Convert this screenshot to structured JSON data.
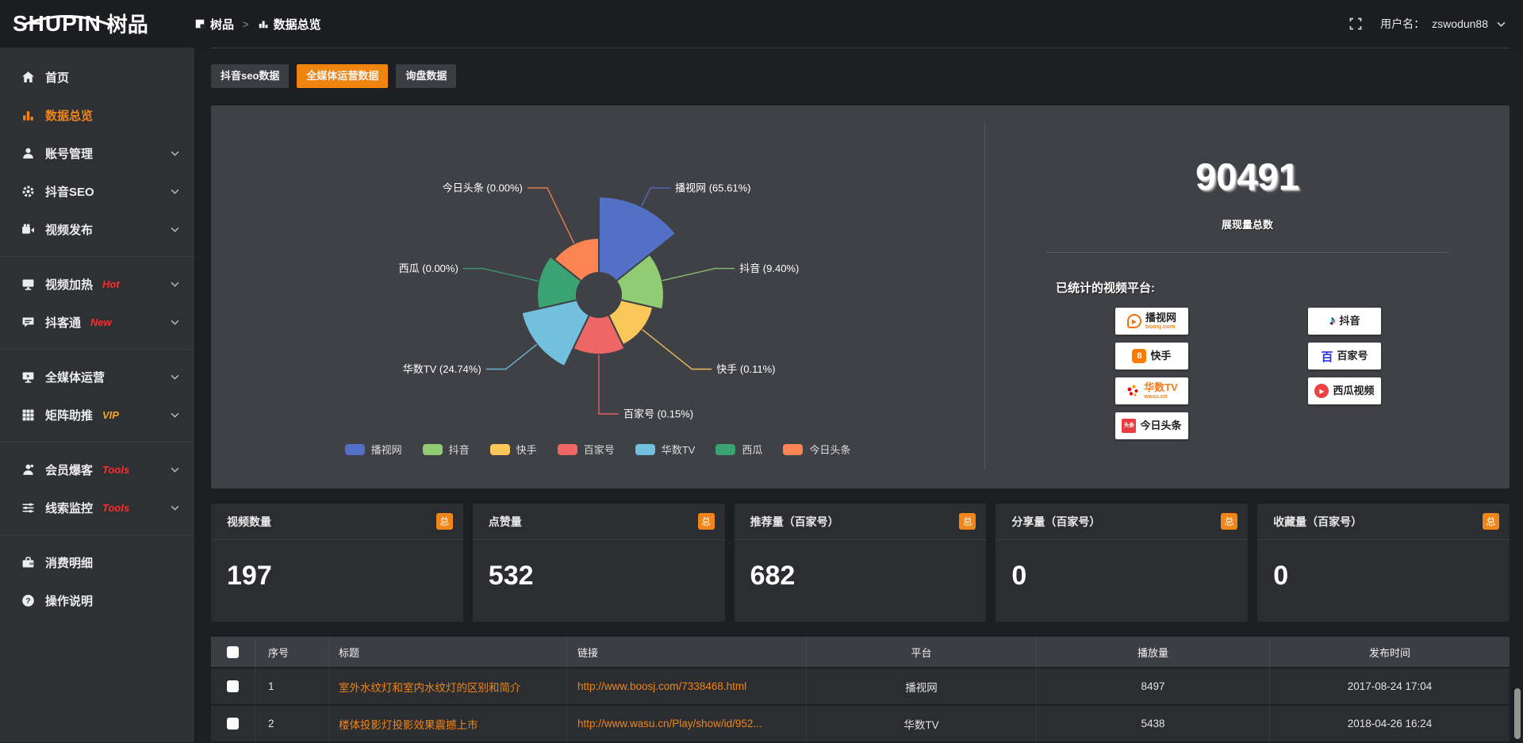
{
  "colors": {
    "accent": "#ee830d",
    "panel_bg": "#404146",
    "hot_badge": "#ff2b2b",
    "vip_badge": "#f5a623",
    "link_orange": "#ee8516"
  },
  "header": {
    "logo_en": "SHUPIN",
    "logo_cn": "树品",
    "breadcrumb": {
      "root": "树品",
      "separator": ">",
      "current": "数据总览"
    },
    "username_label": "用户名：",
    "username": "zswodun88"
  },
  "sidebar": {
    "items": [
      {
        "name": "home",
        "icon": "home",
        "label": "首页"
      },
      {
        "name": "data-overview",
        "icon": "chart",
        "label": "数据总览",
        "active": true
      },
      {
        "name": "account-management",
        "icon": "user",
        "label": "账号管理",
        "chevron": true
      },
      {
        "name": "douyin-seo",
        "icon": "gear",
        "label": "抖音SEO",
        "chevron": true
      },
      {
        "name": "video-publish",
        "icon": "video",
        "label": "视频发布",
        "chevron": true
      },
      {
        "divider": true
      },
      {
        "name": "video-heating",
        "icon": "screen",
        "label": "视频加热",
        "badge": "Hot",
        "badge_color": "#ff2b2b",
        "chevron": true
      },
      {
        "name": "douketong",
        "icon": "chat",
        "label": "抖客通",
        "badge": "New",
        "badge_color": "#ff2b2b",
        "chevron": true
      },
      {
        "divider": true
      },
      {
        "name": "omnimedia-operation",
        "icon": "monitor",
        "label": "全媒体运营",
        "chevron": true
      },
      {
        "name": "matrix-boost",
        "icon": "grid",
        "label": "矩阵助推",
        "badge": "VIP",
        "badge_color": "#f5a623",
        "chevron": true
      },
      {
        "divider": true
      },
      {
        "name": "member-baoke",
        "icon": "member",
        "label": "会员爆客",
        "badge": "Tools",
        "badge_color": "#ff2b2b",
        "chevron": true
      },
      {
        "name": "clue-monitor",
        "icon": "sliders",
        "label": "线索监控",
        "badge": "Tools",
        "badge_color": "#ff2b2b",
        "chevron": true
      },
      {
        "divider": true
      },
      {
        "name": "consumption-detail",
        "icon": "wallet",
        "label": "消费明细"
      },
      {
        "name": "operation-guide",
        "icon": "question",
        "label": "操作说明"
      }
    ]
  },
  "tabs": [
    {
      "name": "douyin-seo-data",
      "label": "抖音seo数据",
      "active": false
    },
    {
      "name": "omnimedia-operation-data",
      "label": "全媒体运营数据",
      "active": true
    },
    {
      "name": "inquiry-data",
      "label": "询盘数据",
      "active": false
    }
  ],
  "chart_data": {
    "type": "pie",
    "subtype": "nightingale-rose",
    "title": "",
    "label_format": "{name} ({pct}%)",
    "legend_position": "bottom",
    "inner_radius": 28,
    "series": [
      {
        "name": "播视网",
        "pct": 65.61,
        "color": "#5470c6",
        "radius": 124
      },
      {
        "name": "抖音",
        "pct": 9.4,
        "color": "#91cc75",
        "radius": 82
      },
      {
        "name": "快手",
        "pct": 0.11,
        "color": "#fac858",
        "radius": 70
      },
      {
        "name": "百家号",
        "pct": 0.15,
        "color": "#ee6666",
        "radius": 75
      },
      {
        "name": "华数TV",
        "pct": 24.74,
        "color": "#73c0de",
        "radius": 100
      },
      {
        "name": "西瓜",
        "pct": 0.0,
        "color": "#3ba272",
        "radius": 78
      },
      {
        "name": "今日头条",
        "pct": 0.0,
        "color": "#fc8452",
        "radius": 72
      }
    ]
  },
  "summary": {
    "total_value": "90491",
    "total_label": "展现量总数",
    "platforms_label": "已统计的视频平台:",
    "platform_columns": [
      [
        {
          "name": "boosj",
          "icon": "boosj",
          "label": "播视网",
          "sub": "boosj.com"
        },
        {
          "name": "kuaishou",
          "icon": "kuaishou",
          "label": "快手"
        },
        {
          "name": "wasu",
          "icon": "wasu",
          "label": "华数TV",
          "sub": "wasu.cn",
          "label_class": "orange"
        },
        {
          "name": "toutiao",
          "icon": "toutiao",
          "label": "今日头条",
          "icon_text": "头条"
        }
      ],
      [
        {
          "name": "douyin",
          "icon": "douyin",
          "label": "抖音"
        },
        {
          "name": "baijiahao",
          "icon": "baijia",
          "label": "百家号",
          "icon_text": "百"
        },
        {
          "name": "xigua",
          "icon": "xigua",
          "label": "西瓜视频"
        }
      ]
    ]
  },
  "stat_cards": [
    {
      "name": "video-count",
      "label": "视频数量",
      "badge": "总",
      "value": "197"
    },
    {
      "name": "like-count",
      "label": "点赞量",
      "badge": "总",
      "value": "532"
    },
    {
      "name": "recommend-count",
      "label": "推荐量（百家号）",
      "badge": "总",
      "value": "682"
    },
    {
      "name": "share-count",
      "label": "分享量（百家号）",
      "badge": "总",
      "value": "0"
    },
    {
      "name": "favorite-count",
      "label": "收藏量（百家号）",
      "badge": "总",
      "value": "0"
    }
  ],
  "table": {
    "columns": [
      {
        "key": "check",
        "label": ""
      },
      {
        "key": "index",
        "label": "序号"
      },
      {
        "key": "title",
        "label": "标题"
      },
      {
        "key": "link",
        "label": "链接"
      },
      {
        "key": "platform",
        "label": "平台"
      },
      {
        "key": "views",
        "label": "播放量"
      },
      {
        "key": "time",
        "label": "发布时间"
      }
    ],
    "rows": [
      {
        "index": "1",
        "title": "室外水纹灯和室内水纹灯的区别和简介",
        "link": "http://www.boosj.com/7338468.html",
        "platform": "播视网",
        "views": "8497",
        "time": "2017-08-24 17:04"
      },
      {
        "index": "2",
        "title": "楼体投影灯投影效果震撼上市",
        "link": "http://www.wasu.cn/Play/show/id/952...",
        "platform": "华数TV",
        "views": "5438",
        "time": "2018-04-26 16:24"
      }
    ]
  }
}
